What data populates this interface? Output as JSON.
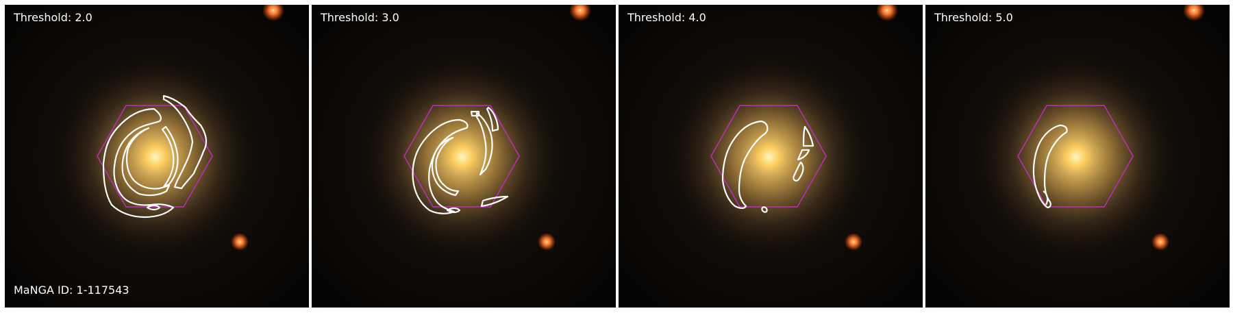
{
  "panels": [
    {
      "threshold_label": "Threshold: 2.0"
    },
    {
      "threshold_label": "Threshold: 3.0"
    },
    {
      "threshold_label": "Threshold: 4.0"
    },
    {
      "threshold_label": "Threshold: 5.0"
    }
  ],
  "galaxy_id_label": "MaNGA ID: 1-117543",
  "colors": {
    "background": "#050403",
    "galaxy_core": "#ffd36a",
    "galaxy_halo": "#8a6a3a",
    "star": "#ff7a2a",
    "contour": "#ffffff",
    "hexagon": "#c42bc4"
  }
}
